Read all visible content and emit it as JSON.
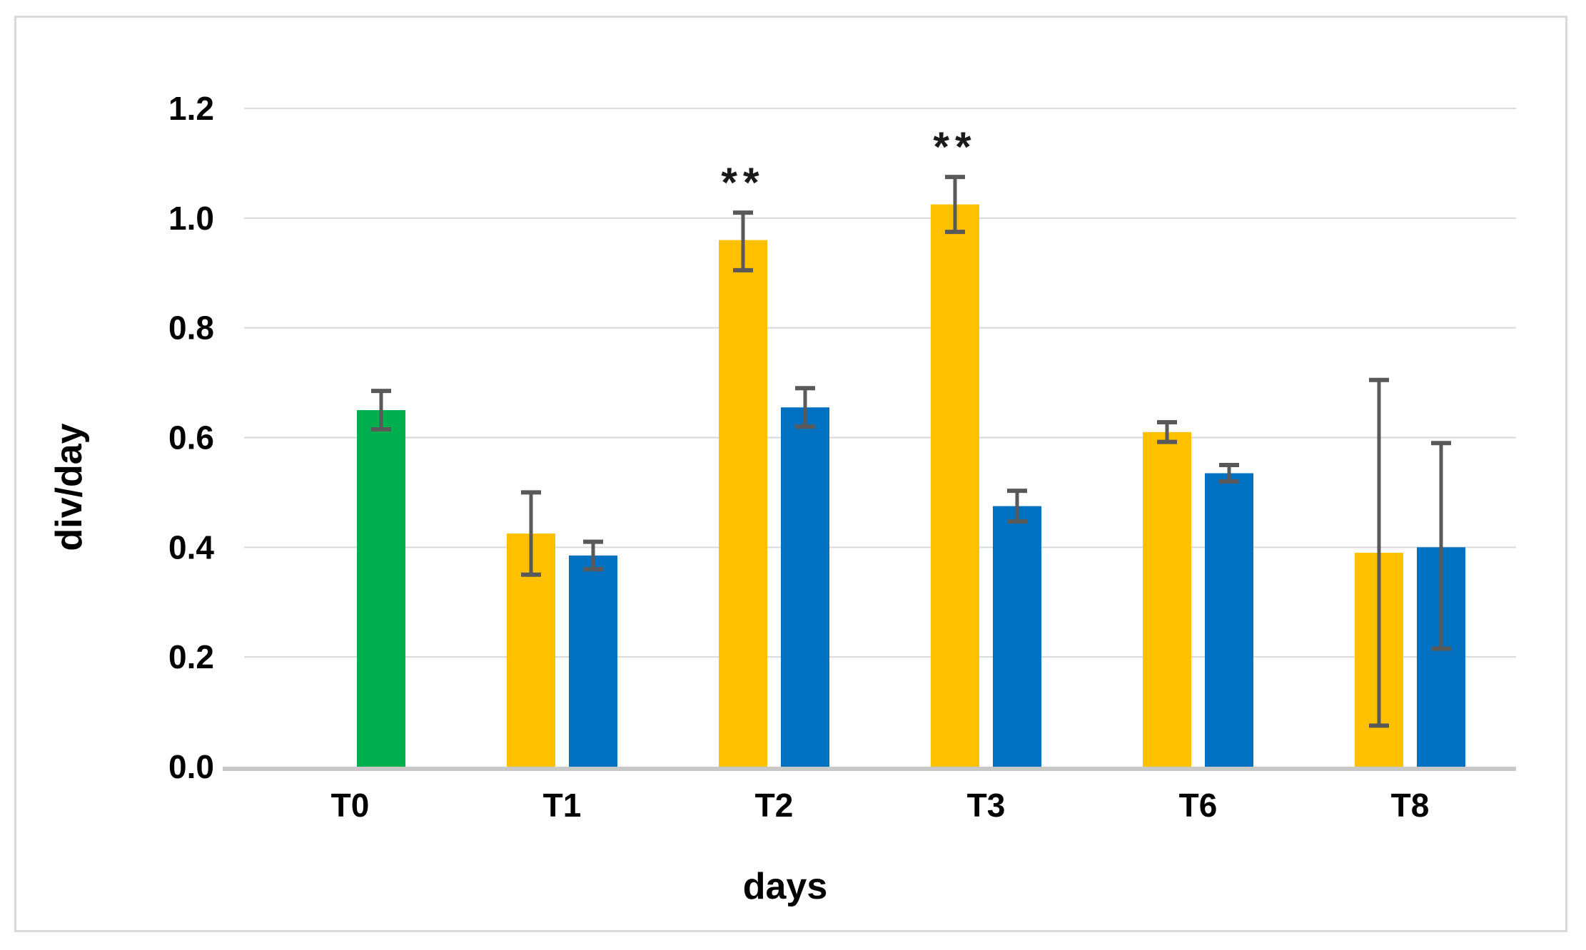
{
  "chart_data": {
    "type": "bar",
    "title": "",
    "xlabel": "days",
    "ylabel": "div/day",
    "categories": [
      "T0",
      "T1",
      "T2",
      "T3",
      "T6",
      "T8"
    ],
    "y_ticks": [
      "0.0",
      "0.2",
      "0.4",
      "0.6",
      "0.8",
      "1.0",
      "1.2"
    ],
    "ylim": [
      0,
      1.2
    ],
    "grid": "horizontal",
    "legend": "none",
    "plot_bgcolor": "#FFFFFF",
    "gridline_color": "#D9D9D9",
    "axis_line_color": "#C8C8C8",
    "error_bar_color": "#595959",
    "text_color": "#000000",
    "series": [
      {
        "name": "green",
        "color": "#00B050",
        "slot": "right",
        "values": [
          0.65,
          null,
          null,
          null,
          null,
          null
        ],
        "err_plus": [
          0.035,
          null,
          null,
          null,
          null,
          null
        ],
        "err_minus": [
          0.035,
          null,
          null,
          null,
          null,
          null
        ]
      },
      {
        "name": "yellow",
        "color": "#FFC000",
        "slot": "left",
        "values": [
          null,
          0.425,
          0.96,
          1.025,
          0.61,
          0.39
        ],
        "err_plus": [
          null,
          0.075,
          0.05,
          0.05,
          0.018,
          0.315
        ],
        "err_minus": [
          null,
          0.075,
          0.055,
          0.05,
          0.018,
          0.315
        ]
      },
      {
        "name": "blue",
        "color": "#0070C0",
        "slot": "right",
        "values": [
          null,
          0.385,
          0.655,
          0.475,
          0.535,
          0.4
        ],
        "err_plus": [
          null,
          0.025,
          0.035,
          0.028,
          0.015,
          0.19
        ],
        "err_minus": [
          null,
          0.025,
          0.035,
          0.028,
          0.015,
          0.185
        ]
      }
    ],
    "annotations": [
      {
        "text": "**",
        "category": "T2",
        "series": "yellow"
      },
      {
        "text": "**",
        "category": "T3",
        "series": "yellow"
      }
    ]
  }
}
